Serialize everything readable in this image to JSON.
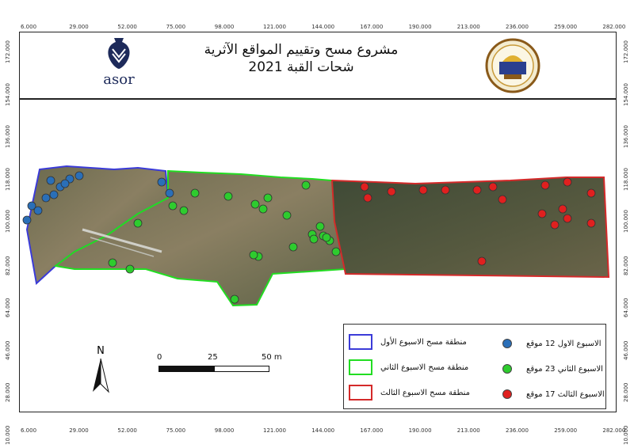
{
  "title": {
    "line1": "مشروع مسح وتقييم المواقع الآثرية",
    "line2": "شحات القبة 2021"
  },
  "logos": {
    "left": {
      "text": "asor",
      "icon": "vessel-icon"
    },
    "right": {
      "icon": "university-seal-icon"
    }
  },
  "axes": {
    "top": [
      "6.000",
      "29.000",
      "52.000",
      "75.000",
      "98.000",
      "121.000",
      "144.000",
      "167.000",
      "190.000",
      "213.000",
      "236.000",
      "259.000",
      "282.000"
    ],
    "bottom": [
      "6.000",
      "29.000",
      "52.000",
      "75.000",
      "98.000",
      "121.000",
      "144.000",
      "167.000",
      "190.000",
      "213.000",
      "236.000",
      "259.000",
      "282.000"
    ],
    "left": [
      "172.000",
      "154.000",
      "136.000",
      "118.000",
      "100.000",
      "82.000",
      "64.000",
      "46.000",
      "28.000",
      "10.000"
    ],
    "right": [
      "172.000",
      "154.000",
      "136.000",
      "118.000",
      "100.000",
      "82.000",
      "64.000",
      "46.000",
      "28.000",
      "10.000"
    ]
  },
  "scale_bar": {
    "labels": [
      "0",
      "25",
      "50 m"
    ]
  },
  "north_arrow": {
    "label": "N"
  },
  "colors": {
    "week1": "#2a6fb8",
    "week2": "#2ecc2e",
    "week3": "#e0201f",
    "week1_border": "#3b3bd8",
    "week2_border": "#22dd22",
    "week3_border": "#d42a2a"
  },
  "legend": {
    "points": [
      {
        "label": "الاسبوع الاول 12 موقع",
        "color": "#2a6fb8"
      },
      {
        "label": "الاسبوع الثاني 23 موقع",
        "color": "#2ecc2e"
      },
      {
        "label": "الاسبوع الثالث 17 موقع",
        "color": "#e0201f"
      }
    ],
    "areas": [
      {
        "label": "منطقة مسح الاسبوع الأول",
        "color": "#3b3bd8"
      },
      {
        "label": "منطقة مسح الاسبوع الثاني",
        "color": "#22dd22"
      },
      {
        "label": "منطقة مسح الاسبوع الثالث",
        "color": "#d42a2a"
      }
    ]
  }
}
